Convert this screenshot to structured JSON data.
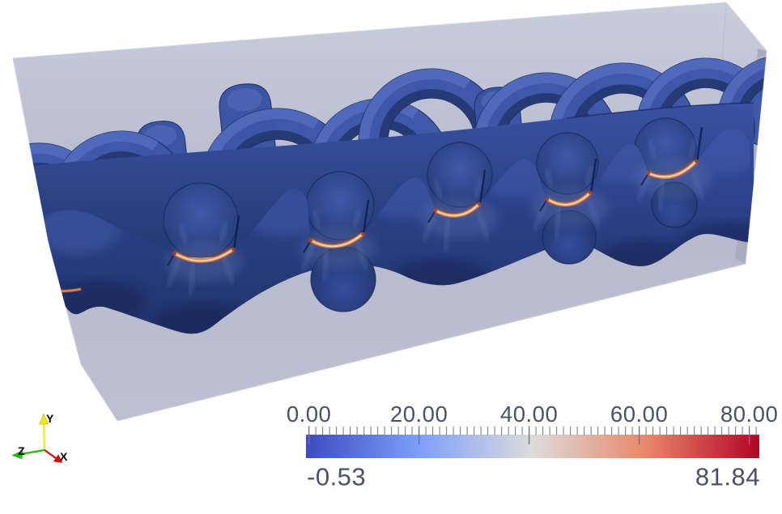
{
  "colorbar": {
    "tick_labels": [
      "0.00",
      "20.00",
      "40.00",
      "60.00",
      "80.00"
    ],
    "min_label": "-0.53",
    "max_label": "81.84",
    "label_color": "#4a5065",
    "tick_color": "#6d7389",
    "gradient_stops": [
      "#3b4cc0",
      "#7d9ff9",
      "#dcdcda",
      "#e8876a",
      "#b40426"
    ]
  },
  "axes_widget": {
    "x_label": "X",
    "y_label": "Y",
    "z_label": "Z",
    "x_color": "#e00000",
    "y_color": "#f2ea00",
    "z_color": "#17c400",
    "label_color": "#000000"
  },
  "scene": {
    "background_color": "#ffffff",
    "box_color": "#b9bccf",
    "box_right_face_color": "#a8abbe",
    "tow_blue": "#2c4186",
    "arch_blue": "#3d57aa",
    "arch_highlight": "#5570bf",
    "arch_shadow": "#24376f",
    "stress_orange": "#e78c4a",
    "stress_core": "#fadfc2",
    "streak_blue": "#7a90cf"
  },
  "chart_data": {
    "type": "heatmap",
    "title": "",
    "colorbar_tick_values": [
      0,
      20,
      40,
      60,
      80
    ],
    "colorbar_tick_labels": [
      "0.00",
      "20.00",
      "40.00",
      "60.00",
      "80.00"
    ],
    "data_range": [
      -0.53,
      81.84
    ],
    "colormap": "cool-to-warm (blue-white-red diverging)",
    "legend_position": "bottom",
    "orientation_axes": [
      "X",
      "Y",
      "Z"
    ]
  }
}
